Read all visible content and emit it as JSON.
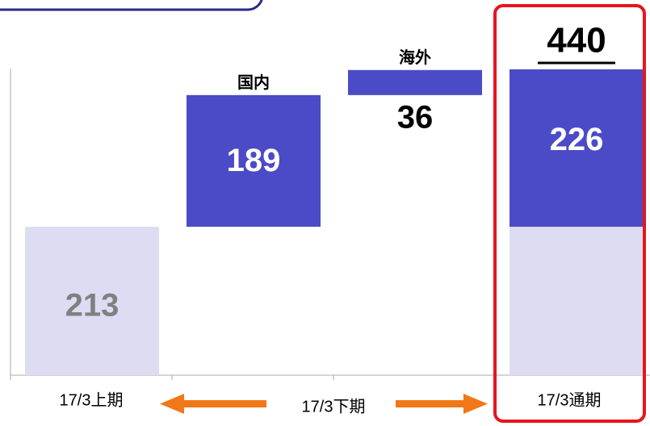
{
  "chart_data": {
    "type": "waterfall",
    "categories": [
      "17/3上期",
      "17/3下期",
      "17/3通期"
    ],
    "first": {
      "value": 213,
      "color": "#dcdcf2"
    },
    "increments": [
      {
        "label": "国内",
        "value": 189
      },
      {
        "label": "海外",
        "value": 36
      }
    ],
    "increment_color": "#4b4bc8",
    "total_parts": [
      213,
      226
    ],
    "total": 440,
    "ylim": [
      0,
      535
    ]
  }
}
